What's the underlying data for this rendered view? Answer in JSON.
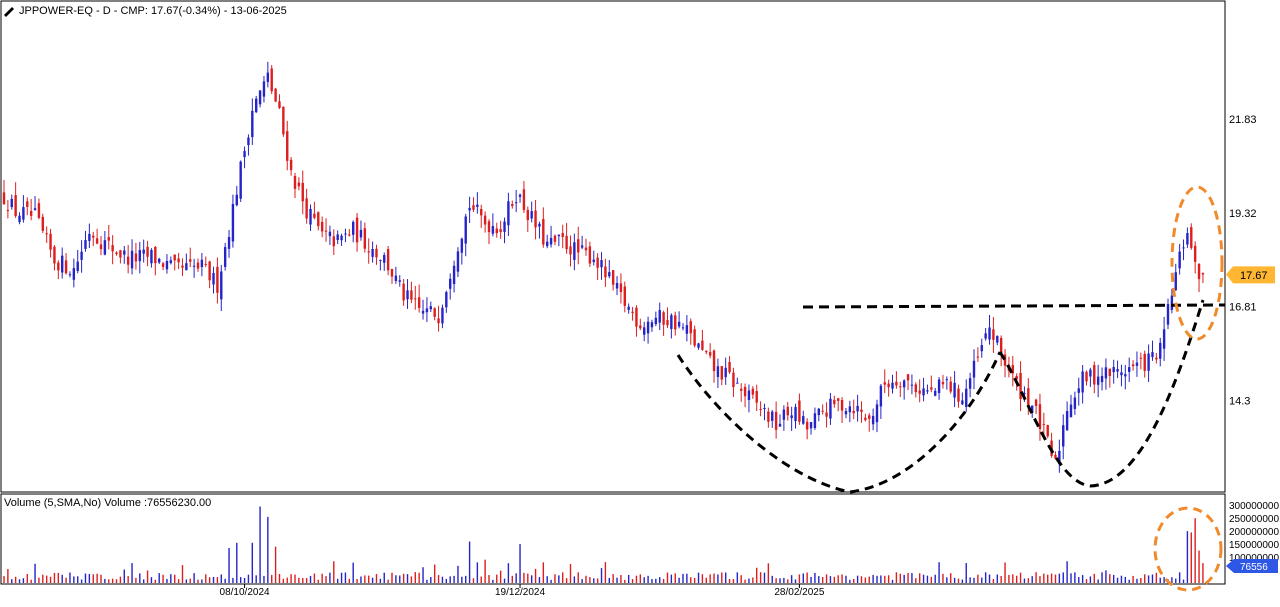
{
  "header": {
    "title": "JPPOWER-EQ - D - CMP: 17.67(-0.34%) - 13-06-2025"
  },
  "volume_header": {
    "title": "Volume (5,SMA,No) Volume :76556230.00"
  },
  "colors": {
    "up": "#2424c8",
    "down": "#dc1e1e",
    "annotation": "#000000",
    "highlight": "#f08a2a",
    "price_tag": "#ffb733",
    "vol_tag": "#2f57e6",
    "bg": "#ffffff",
    "frame": "#000000"
  },
  "chart_data": [
    {
      "type": "candlestick",
      "title": "JPPOWER-EQ - D - CMP: 17.67(-0.34%) - 13-06-2025",
      "y_ticks": [
        21.83,
        19.32,
        16.81,
        14.3
      ],
      "ylim": [
        11.9,
        24.8
      ],
      "current_price": 17.67,
      "x_ticks": [
        "08/10/2024",
        "19/12/2024",
        "28/02/2025"
      ],
      "x_tick_index": [
        62,
        133,
        205
      ],
      "anchors": [
        [
          0,
          19.75
        ],
        [
          3,
          19.35
        ],
        [
          8,
          19.2
        ],
        [
          13,
          18.05
        ],
        [
          18,
          17.8
        ],
        [
          22,
          18.85
        ],
        [
          26,
          18.5
        ],
        [
          32,
          18.1
        ],
        [
          38,
          18.15
        ],
        [
          44,
          17.8
        ],
        [
          51,
          17.85
        ],
        [
          55,
          17.4
        ],
        [
          58,
          18.9
        ],
        [
          64,
          22.1
        ],
        [
          68,
          22.95
        ],
        [
          71,
          21.95
        ],
        [
          74,
          20.4
        ],
        [
          78,
          19.4
        ],
        [
          82,
          18.7
        ],
        [
          86,
          18.55
        ],
        [
          90,
          18.85
        ],
        [
          94,
          18.45
        ],
        [
          98,
          18.1
        ],
        [
          103,
          17.1
        ],
        [
          107,
          16.7
        ],
        [
          112,
          16.6
        ],
        [
          116,
          18.15
        ],
        [
          120,
          19.55
        ],
        [
          124,
          19.05
        ],
        [
          128,
          18.95
        ],
        [
          132,
          19.85
        ],
        [
          136,
          19.15
        ],
        [
          140,
          18.45
        ],
        [
          144,
          18.55
        ],
        [
          148,
          18.25
        ],
        [
          152,
          18.15
        ],
        [
          156,
          17.5
        ],
        [
          160,
          16.9
        ],
        [
          164,
          16.35
        ],
        [
          168,
          16.5
        ],
        [
          172,
          16.45
        ],
        [
          176,
          16.15
        ],
        [
          179,
          15.7
        ],
        [
          183,
          15.15
        ],
        [
          187,
          14.9
        ],
        [
          191,
          14.45
        ],
        [
          195,
          14.1
        ],
        [
          199,
          13.65
        ],
        [
          203,
          14.05
        ],
        [
          207,
          13.55
        ],
        [
          211,
          14.0
        ],
        [
          215,
          14.2
        ],
        [
          219,
          14.15
        ],
        [
          223,
          13.75
        ],
        [
          227,
          14.75
        ],
        [
          231,
          14.9
        ],
        [
          235,
          14.65
        ],
        [
          239,
          14.5
        ],
        [
          243,
          14.75
        ],
        [
          247,
          14.35
        ],
        [
          251,
          15.4
        ],
        [
          254,
          16.25
        ],
        [
          257,
          15.55
        ],
        [
          261,
          14.7
        ],
        [
          265,
          14.2
        ],
        [
          268,
          13.4
        ],
        [
          271,
          12.55
        ],
        [
          274,
          14.15
        ],
        [
          278,
          14.85
        ],
        [
          282,
          15.0
        ],
        [
          286,
          15.05
        ],
        [
          290,
          15.15
        ],
        [
          294,
          15.3
        ],
        [
          298,
          15.6
        ],
        [
          301,
          17.2
        ],
        [
          303,
          18.1
        ],
        [
          305,
          18.9
        ],
        [
          307,
          17.8
        ],
        [
          309,
          17.67
        ]
      ],
      "volume": {
        "y_ticks": [
          "300000000.0",
          "250000000.0",
          "200000000.0",
          "150000000.0",
          "100000000.0"
        ],
        "ylim": [
          0,
          320000000
        ],
        "last_value": "76556230.00",
        "last_label": "76556"
      },
      "annotations": [
        "resistance-line",
        "cup-left",
        "cup-right",
        "breakout-circle-price",
        "breakout-circle-volume"
      ]
    }
  ]
}
